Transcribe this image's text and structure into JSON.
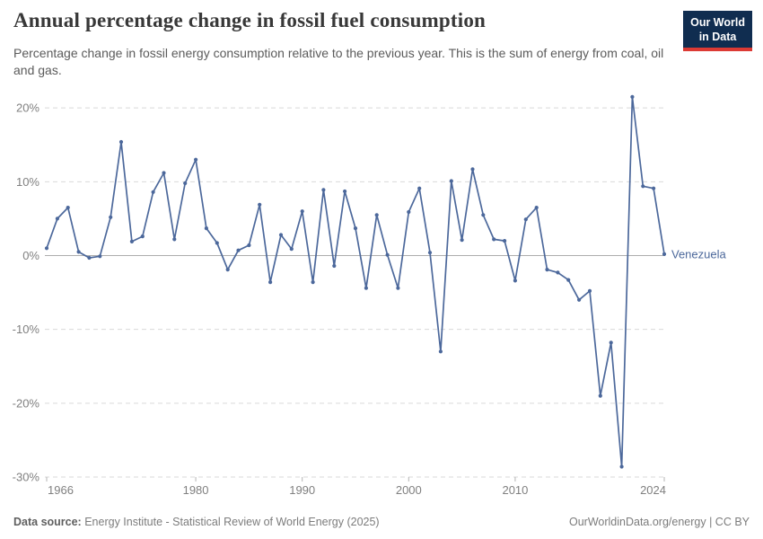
{
  "header": {
    "title": "Annual percentage change in fossil fuel consumption",
    "subtitle": "Percentage change in fossil energy consumption relative to the previous year. This is the sum of energy from coal, oil and gas.",
    "logo": {
      "line1": "Our World",
      "line2": "in Data",
      "bg_color": "#102d50",
      "accent_color": "#dc3a34"
    }
  },
  "chart_data": {
    "type": "line",
    "title": "Annual percentage change in fossil fuel consumption",
    "xlabel": "",
    "ylabel": "",
    "xlim": [
      1966,
      2024
    ],
    "ylim": [
      -30,
      22
    ],
    "grid": "horizontal-dashed",
    "zero_line": true,
    "legend_position": "end-of-line-label",
    "x_tick_labels": [
      1966,
      1980,
      1990,
      2000,
      2010,
      2024
    ],
    "y_tick_values": [
      20,
      10,
      0,
      -10,
      -20,
      -30
    ],
    "y_tick_labels": [
      "20%",
      "10%",
      "0%",
      "-10%",
      "-20%",
      "-30%"
    ],
    "series": [
      {
        "name": "Venezuela",
        "color": "#4c689b",
        "x": [
          1966,
          1967,
          1968,
          1969,
          1970,
          1971,
          1972,
          1973,
          1974,
          1975,
          1976,
          1977,
          1978,
          1979,
          1980,
          1981,
          1982,
          1983,
          1984,
          1985,
          1986,
          1987,
          1988,
          1989,
          1990,
          1991,
          1992,
          1993,
          1994,
          1995,
          1996,
          1997,
          1998,
          1999,
          2000,
          2001,
          2002,
          2003,
          2004,
          2005,
          2006,
          2007,
          2008,
          2009,
          2010,
          2011,
          2012,
          2013,
          2014,
          2015,
          2016,
          2017,
          2018,
          2019,
          2020,
          2021,
          2022,
          2023,
          2024
        ],
        "values": [
          1.0,
          5.0,
          6.5,
          0.5,
          -0.3,
          -0.1,
          5.2,
          15.4,
          1.9,
          2.6,
          8.6,
          11.2,
          2.2,
          9.8,
          13.0,
          3.7,
          1.7,
          -1.9,
          0.7,
          1.4,
          6.9,
          -3.6,
          2.8,
          0.9,
          6.0,
          -3.6,
          8.9,
          -1.4,
          8.7,
          3.7,
          -4.4,
          5.5,
          0.1,
          -4.4,
          5.9,
          9.1,
          0.4,
          -13.0,
          10.1,
          2.1,
          11.7,
          5.5,
          2.2,
          2.0,
          -3.4,
          4.9,
          6.5,
          -1.9,
          -2.3,
          -3.3,
          -6.0,
          -4.8,
          -19.0,
          -11.8,
          -28.6,
          21.5,
          9.4,
          9.1,
          0.2
        ]
      }
    ]
  },
  "footer": {
    "datasource_label": "Data source:",
    "datasource_text": " Energy Institute - Statistical Review of World Energy (2025)",
    "credit": "OurWorldinData.org/energy | CC BY"
  }
}
